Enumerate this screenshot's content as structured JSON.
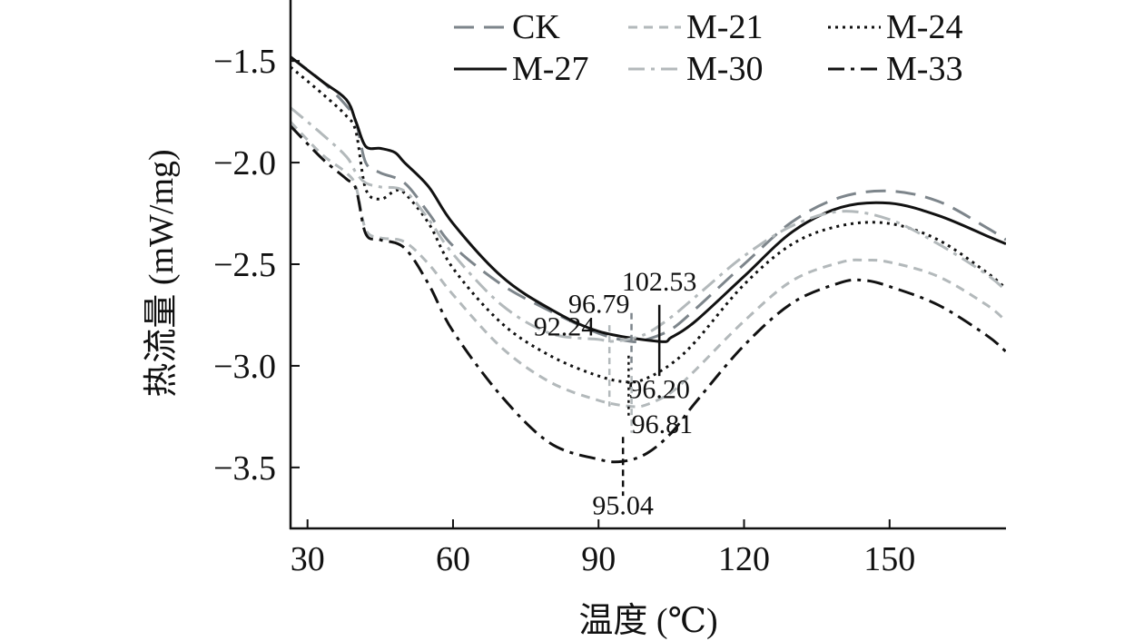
{
  "chart_data": {
    "type": "line",
    "xlabel": "温度 (℃)",
    "ylabel": "热流量 (mW/mg)",
    "xlim": [
      26.5,
      174
    ],
    "ylim": [
      -3.8,
      -1.2
    ],
    "xticks": [
      30,
      60,
      90,
      120,
      150
    ],
    "xtick_labels": [
      "30",
      "60",
      "90",
      "120",
      "150"
    ],
    "yticks": [
      -1.5,
      -2.0,
      -2.5,
      -3.0,
      -3.5
    ],
    "ytick_labels": [
      "−1.5",
      "−2.0",
      "−2.5",
      "−3.0",
      "−3.5"
    ],
    "grid": false,
    "legend_position": "top-right",
    "series": [
      {
        "name": "CK",
        "color": "#7d858b",
        "dash": "dash",
        "x": [
          26.5,
          33,
          38,
          40,
          42,
          45,
          50,
          55,
          60,
          70,
          80,
          90,
          96.79,
          100,
          105,
          110,
          120,
          130,
          140,
          150,
          160,
          170,
          174
        ],
        "y": [
          -1.48,
          -1.6,
          -1.72,
          -1.8,
          -2.0,
          -2.05,
          -2.1,
          -2.25,
          -2.41,
          -2.6,
          -2.73,
          -2.84,
          -2.88,
          -2.87,
          -2.82,
          -2.72,
          -2.5,
          -2.29,
          -2.17,
          -2.14,
          -2.19,
          -2.32,
          -2.38
        ]
      },
      {
        "name": "M-21",
        "color": "#b3b9bb",
        "dash": "short-dash",
        "x": [
          26.5,
          33,
          38,
          40,
          42,
          45,
          50,
          55,
          60,
          70,
          80,
          90,
          96.81,
          100,
          105,
          110,
          120,
          130,
          140,
          145,
          150,
          160,
          170,
          174
        ],
        "y": [
          -1.8,
          -1.96,
          -2.05,
          -2.12,
          -2.33,
          -2.37,
          -2.39,
          -2.5,
          -2.65,
          -2.91,
          -3.08,
          -3.17,
          -3.2,
          -3.19,
          -3.13,
          -3.02,
          -2.78,
          -2.58,
          -2.49,
          -2.48,
          -2.49,
          -2.56,
          -2.7,
          -2.78
        ]
      },
      {
        "name": "M-24",
        "color": "#111111",
        "dash": "dot",
        "x": [
          26.5,
          33,
          38,
          40,
          42,
          45,
          48,
          50,
          55,
          60,
          70,
          80,
          90,
          96.2,
          100,
          105,
          110,
          120,
          130,
          140,
          150,
          160,
          170,
          174
        ],
        "y": [
          -1.53,
          -1.66,
          -1.77,
          -1.85,
          -2.13,
          -2.18,
          -2.14,
          -2.15,
          -2.3,
          -2.52,
          -2.79,
          -2.95,
          -3.05,
          -3.08,
          -3.06,
          -2.99,
          -2.88,
          -2.6,
          -2.4,
          -2.31,
          -2.3,
          -2.38,
          -2.54,
          -2.62
        ]
      },
      {
        "name": "M-27",
        "color": "#111111",
        "dash": "solid",
        "x": [
          26.5,
          33,
          38,
          40,
          42,
          45,
          48,
          50,
          55,
          60,
          70,
          80,
          90,
          102.53,
          105,
          110,
          120,
          130,
          140,
          150,
          160,
          170,
          174
        ],
        "y": [
          -1.48,
          -1.6,
          -1.69,
          -1.8,
          -1.92,
          -1.93,
          -1.95,
          -2.0,
          -2.12,
          -2.3,
          -2.56,
          -2.72,
          -2.83,
          -2.88,
          -2.86,
          -2.78,
          -2.56,
          -2.34,
          -2.22,
          -2.2,
          -2.26,
          -2.36,
          -2.4
        ]
      },
      {
        "name": "M-30",
        "color": "#b3b9bb",
        "dash": "dash-dot",
        "x": [
          26.5,
          33,
          38,
          40,
          42,
          45,
          50,
          55,
          60,
          70,
          80,
          90,
          92.24,
          96,
          100,
          105,
          110,
          120,
          130,
          140,
          150,
          160,
          170,
          174
        ],
        "y": [
          -1.73,
          -1.86,
          -1.97,
          -2.05,
          -2.1,
          -2.12,
          -2.14,
          -2.28,
          -2.45,
          -2.7,
          -2.84,
          -2.87,
          -2.88,
          -2.87,
          -2.84,
          -2.76,
          -2.66,
          -2.46,
          -2.31,
          -2.24,
          -2.28,
          -2.4,
          -2.55,
          -2.63
        ]
      },
      {
        "name": "M-33",
        "color": "#111111",
        "dash": "dash-dot",
        "x": [
          26.5,
          33,
          38,
          40,
          42,
          45,
          50,
          55,
          60,
          70,
          80,
          90,
          95.04,
          100,
          105,
          110,
          120,
          130,
          140,
          145,
          150,
          160,
          170,
          174
        ],
        "y": [
          -1.82,
          -1.98,
          -2.08,
          -2.13,
          -2.35,
          -2.38,
          -2.42,
          -2.6,
          -2.83,
          -3.15,
          -3.38,
          -3.46,
          -3.47,
          -3.43,
          -3.33,
          -3.18,
          -2.9,
          -2.69,
          -2.59,
          -2.58,
          -2.61,
          -2.7,
          -2.85,
          -2.93
        ]
      }
    ],
    "annotations": [
      {
        "text": "102.53",
        "x": 102.53,
        "y": -2.88,
        "color": "#111111",
        "marker": "solid"
      },
      {
        "text": "96.79",
        "x": 96.79,
        "y": -2.88,
        "color": "#7d858b",
        "marker": "dash"
      },
      {
        "text": "92.24",
        "x": 92.24,
        "y": -2.88,
        "color": "#b3b9bb",
        "marker": "dash-dot"
      },
      {
        "text": "96.20",
        "x": 96.2,
        "y": -3.08,
        "color": "#111111",
        "marker": "dot"
      },
      {
        "text": "96.81",
        "x": 96.81,
        "y": -3.2,
        "color": "#b3b9bb",
        "marker": "short-dash"
      },
      {
        "text": "95.04",
        "x": 95.04,
        "y": -3.47,
        "color": "#111111",
        "marker": "dash-dot"
      }
    ]
  }
}
